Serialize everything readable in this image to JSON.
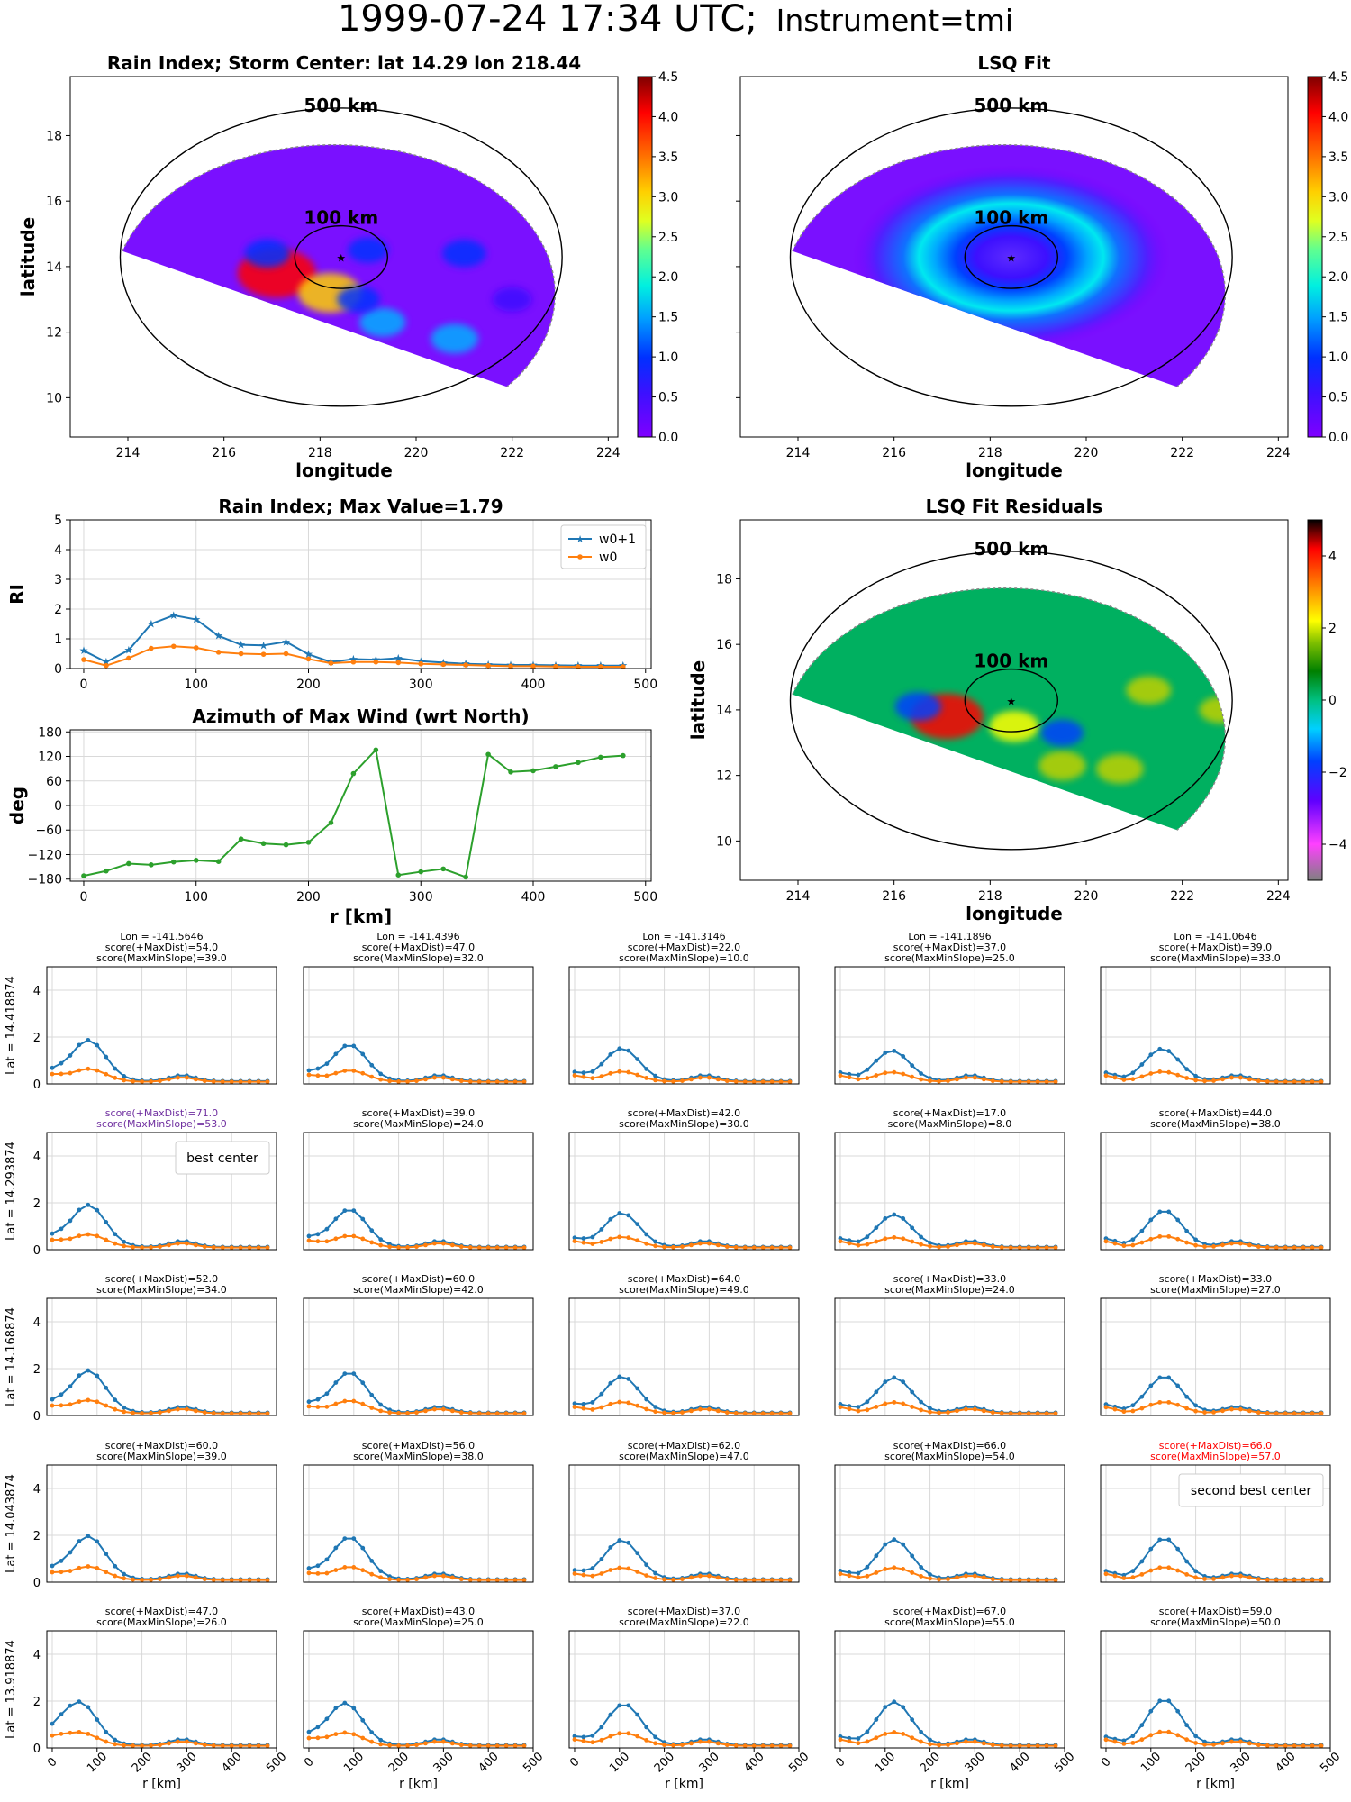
{
  "title": {
    "main": "1999-07-24 17:34 UTC;",
    "instrument": "Instrument=tmi"
  },
  "colors": {
    "blue": "#1f77b4",
    "orange": "#ff7f0e",
    "green": "#2ca02c",
    "purple": "#7030a0",
    "red": "#ff0000",
    "grid": "#d9d9d9"
  },
  "chart_data": [
    {
      "id": "rain-map",
      "type": "heatmap",
      "title": "Rain Index; Storm Center: lat 14.29 lon 218.44",
      "xlabel": "longitude",
      "ylabel": "latitude",
      "xlim": [
        212.8,
        224.2
      ],
      "ylim": [
        8.8,
        19.8
      ],
      "xticks": [
        "214",
        "216",
        "218",
        "220",
        "222",
        "224"
      ],
      "yticks": [
        "10",
        "12",
        "14",
        "16",
        "18"
      ],
      "center": {
        "lon": 218.44,
        "lat": 14.29
      },
      "ring_labels": [
        "500 km",
        "100 km"
      ],
      "colorbar": {
        "range": [
          0,
          4.5
        ],
        "ticks": [
          "0.0",
          "0.5",
          "1.0",
          "1.5",
          "2.0",
          "2.5",
          "3.0",
          "3.5",
          "4.0",
          "4.5"
        ]
      },
      "hotspots": [
        {
          "lon": 217.1,
          "lat": 13.8,
          "value": 4.3
        },
        {
          "lon": 218.2,
          "lat": 13.2,
          "value": 3.0
        },
        {
          "lon": 216.9,
          "lat": 14.4,
          "value": 1.4
        },
        {
          "lon": 219.3,
          "lat": 12.3,
          "value": 1.5
        },
        {
          "lon": 220.8,
          "lat": 11.8,
          "value": 1.6
        },
        {
          "lon": 219.0,
          "lat": 14.5,
          "value": 1.0
        },
        {
          "lon": 221.0,
          "lat": 14.4,
          "value": 1.3
        },
        {
          "lon": 218.8,
          "lat": 13.0,
          "value": 1.2
        },
        {
          "lon": 222.0,
          "lat": 13.0,
          "value": 0.9
        }
      ]
    },
    {
      "id": "lsq-map",
      "type": "heatmap",
      "title": "LSQ Fit",
      "xlabel": "longitude",
      "xlim": [
        212.8,
        224.2
      ],
      "ylim": [
        8.8,
        19.8
      ],
      "xticks": [
        "214",
        "216",
        "218",
        "220",
        "222",
        "224"
      ],
      "center": {
        "lon": 218.44,
        "lat": 14.29
      },
      "ring_labels": [
        "500 km",
        "100 km"
      ],
      "colorbar": {
        "range": [
          0,
          4.5
        ],
        "ticks": [
          "0.0",
          "0.5",
          "1.0",
          "1.5",
          "2.0",
          "2.5",
          "3.0",
          "3.5",
          "4.0",
          "4.5"
        ]
      }
    },
    {
      "id": "residuals-map",
      "type": "heatmap",
      "title": "LSQ Fit Residuals",
      "xlabel": "longitude",
      "ylabel": "latitude",
      "xlim": [
        212.8,
        224.2
      ],
      "ylim": [
        8.8,
        19.8
      ],
      "xticks": [
        "214",
        "216",
        "218",
        "220",
        "222",
        "224"
      ],
      "yticks": [
        "10",
        "12",
        "14",
        "16",
        "18"
      ],
      "center": {
        "lon": 218.44,
        "lat": 14.29
      },
      "ring_labels": [
        "500 km",
        "100 km"
      ],
      "colorbar": {
        "range": [
          -5,
          5
        ],
        "ticks": [
          "−4",
          "−2",
          "0",
          "2",
          "4"
        ]
      },
      "hotspots": [
        {
          "lon": 217.1,
          "lat": 13.8,
          "value": 3.8
        },
        {
          "lon": 218.5,
          "lat": 13.5,
          "value": 1.8
        },
        {
          "lon": 219.5,
          "lat": 12.3,
          "value": 1.6
        },
        {
          "lon": 220.7,
          "lat": 12.2,
          "value": 1.6
        },
        {
          "lon": 221.3,
          "lat": 14.6,
          "value": 1.4
        },
        {
          "lon": 222.8,
          "lat": 14.0,
          "value": 1.2
        },
        {
          "lon": 216.5,
          "lat": 14.1,
          "value": -1.5
        },
        {
          "lon": 219.5,
          "lat": 13.3,
          "value": -1.2
        }
      ]
    },
    {
      "id": "rain-index-profile",
      "type": "line",
      "title": "Rain Index; Max Value=1.79",
      "xlabel": "",
      "ylabel": "RI",
      "xlim": [
        -12,
        505
      ],
      "ylim": [
        0,
        5
      ],
      "xticks": [
        "0",
        "100",
        "200",
        "300",
        "400",
        "500"
      ],
      "yticks": [
        "0",
        "1",
        "2",
        "3",
        "4",
        "5"
      ],
      "legend": "top-right",
      "x": [
        0,
        20,
        40,
        60,
        80,
        100,
        120,
        140,
        160,
        180,
        200,
        220,
        240,
        260,
        280,
        300,
        320,
        340,
        360,
        380,
        400,
        420,
        440,
        460,
        480
      ],
      "series": [
        {
          "name": "w0+1",
          "values": [
            0.6,
            0.22,
            0.62,
            1.5,
            1.79,
            1.65,
            1.1,
            0.8,
            0.78,
            0.9,
            0.48,
            0.22,
            0.32,
            0.3,
            0.35,
            0.25,
            0.2,
            0.16,
            0.14,
            0.12,
            0.12,
            0.11,
            0.1,
            0.1,
            0.1
          ]
        },
        {
          "name": "w0",
          "values": [
            0.3,
            0.1,
            0.35,
            0.68,
            0.75,
            0.7,
            0.55,
            0.5,
            0.48,
            0.5,
            0.32,
            0.18,
            0.22,
            0.22,
            0.2,
            0.16,
            0.14,
            0.12,
            0.1,
            0.08,
            0.08,
            0.07,
            0.06,
            0.06,
            0.06
          ]
        }
      ]
    },
    {
      "id": "azimuth-profile",
      "type": "line",
      "title": "Azimuth of Max Wind (wrt North)",
      "xlabel": "r [km]",
      "ylabel": "deg",
      "xlim": [
        -12,
        505
      ],
      "ylim": [
        -185,
        185
      ],
      "xticks": [
        "0",
        "100",
        "200",
        "300",
        "400",
        "500"
      ],
      "yticks": [
        "180",
        "120",
        "60",
        "0",
        "−60",
        "−120",
        "−180"
      ],
      "x": [
        0,
        20,
        40,
        60,
        80,
        100,
        120,
        140,
        160,
        180,
        200,
        220,
        240,
        260,
        280,
        300,
        320,
        340,
        360,
        380,
        400,
        420,
        440,
        460,
        480
      ],
      "series": [
        {
          "values": [
            -172,
            -160,
            -142,
            -145,
            -138,
            -134,
            -137,
            -82,
            -93,
            -96,
            -90,
            -42,
            78,
            136,
            -170,
            -162,
            -155,
            -175,
            125,
            82,
            85,
            95,
            105,
            118,
            122
          ]
        }
      ]
    },
    {
      "id": "score-grid",
      "type": "line",
      "xlabel": "r [km]",
      "xlim": [
        -12,
        500
      ],
      "ylim": [
        0,
        5
      ],
      "xticks": [
        "0",
        "100",
        "200",
        "300",
        "400",
        "500"
      ],
      "yticks": [
        "0",
        "2",
        "4"
      ],
      "cols": [
        "Lon = -141.5646",
        "Lon = -141.4396",
        "Lon = -141.3146",
        "Lon = -141.1896",
        "Lon = -141.0646"
      ],
      "rows": [
        "Lat = 14.418874",
        "Lat = 14.293874",
        "Lat = 14.168874",
        "Lat = 14.043874",
        "Lat = 13.918874"
      ],
      "x": [
        0,
        20,
        40,
        60,
        80,
        100,
        120,
        140,
        160,
        180,
        200,
        220,
        240,
        260,
        280,
        300,
        320,
        340,
        360,
        380,
        400,
        420,
        440,
        460,
        480
      ],
      "cells": [
        [
          {
            "s1": "score(+MaxDist)=54.0",
            "s2": "score(MaxMinSlope)=39.0",
            "peak": 1.75,
            "pos": 80
          },
          {
            "s1": "score(+MaxDist)=47.0",
            "s2": "score(MaxMinSlope)=32.0",
            "peak": 1.55,
            "pos": 90
          },
          {
            "s1": "score(+MaxDist)=22.0",
            "s2": "score(MaxMinSlope)=10.0",
            "peak": 1.4,
            "pos": 105
          },
          {
            "s1": "score(+MaxDist)=37.0",
            "s2": "score(MaxMinSlope)=25.0",
            "peak": 1.3,
            "pos": 115
          },
          {
            "s1": "score(+MaxDist)=39.0",
            "s2": "score(MaxMinSlope)=33.0",
            "peak": 1.38,
            "pos": 125
          }
        ],
        [
          {
            "s1": "score(+MaxDist)=71.0",
            "s2": "score(MaxMinSlope)=53.0",
            "peak": 1.79,
            "pos": 80,
            "color": "purple",
            "legend": "best center"
          },
          {
            "s1": "score(+MaxDist)=39.0",
            "s2": "score(MaxMinSlope)=24.0",
            "peak": 1.6,
            "pos": 90
          },
          {
            "s1": "score(+MaxDist)=42.0",
            "s2": "score(MaxMinSlope)=30.0",
            "peak": 1.45,
            "pos": 105
          },
          {
            "s1": "score(+MaxDist)=17.0",
            "s2": "score(MaxMinSlope)=8.0",
            "peak": 1.38,
            "pos": 120
          },
          {
            "s1": "score(+MaxDist)=44.0",
            "s2": "score(MaxMinSlope)=38.0",
            "peak": 1.55,
            "pos": 130
          }
        ],
        [
          {
            "s1": "score(+MaxDist)=52.0",
            "s2": "score(MaxMinSlope)=34.0",
            "peak": 1.8,
            "pos": 80
          },
          {
            "s1": "score(+MaxDist)=60.0",
            "s2": "score(MaxMinSlope)=42.0",
            "peak": 1.72,
            "pos": 90
          },
          {
            "s1": "score(+MaxDist)=64.0",
            "s2": "score(MaxMinSlope)=49.0",
            "peak": 1.55,
            "pos": 105
          },
          {
            "s1": "score(+MaxDist)=33.0",
            "s2": "score(MaxMinSlope)=24.0",
            "peak": 1.5,
            "pos": 120
          },
          {
            "s1": "score(+MaxDist)=33.0",
            "s2": "score(MaxMinSlope)=27.0",
            "peak": 1.55,
            "pos": 130
          }
        ],
        [
          {
            "s1": "score(+MaxDist)=60.0",
            "s2": "score(MaxMinSlope)=39.0",
            "peak": 1.85,
            "pos": 80
          },
          {
            "s1": "score(+MaxDist)=56.0",
            "s2": "score(MaxMinSlope)=38.0",
            "peak": 1.8,
            "pos": 90
          },
          {
            "s1": "score(+MaxDist)=62.0",
            "s2": "score(MaxMinSlope)=47.0",
            "peak": 1.68,
            "pos": 105
          },
          {
            "s1": "score(+MaxDist)=66.0",
            "s2": "score(MaxMinSlope)=54.0",
            "peak": 1.7,
            "pos": 120
          },
          {
            "s1": "score(+MaxDist)=66.0",
            "s2": "score(MaxMinSlope)=57.0",
            "peak": 1.75,
            "pos": 130,
            "color": "red",
            "legend": "second best center"
          }
        ],
        [
          {
            "s1": "score(+MaxDist)=47.0",
            "s2": "score(MaxMinSlope)=26.0",
            "peak": 1.85,
            "pos": 60
          },
          {
            "s1": "score(+MaxDist)=43.0",
            "s2": "score(MaxMinSlope)=25.0",
            "peak": 1.8,
            "pos": 80
          },
          {
            "s1": "score(+MaxDist)=37.0",
            "s2": "score(MaxMinSlope)=22.0",
            "peak": 1.75,
            "pos": 110
          },
          {
            "s1": "score(+MaxDist)=67.0",
            "s2": "score(MaxMinSlope)=55.0",
            "peak": 1.85,
            "pos": 120
          },
          {
            "s1": "score(+MaxDist)=59.0",
            "s2": "score(MaxMinSlope)=50.0",
            "peak": 1.95,
            "pos": 130
          }
        ]
      ]
    }
  ]
}
